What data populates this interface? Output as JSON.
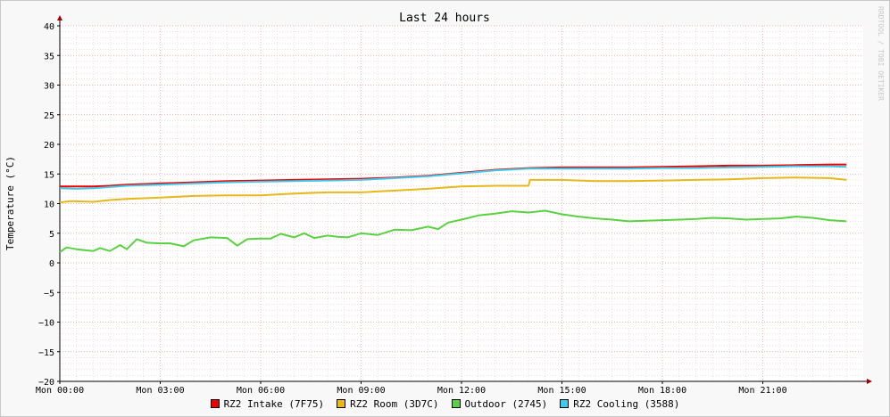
{
  "chart_data": {
    "type": "line",
    "title": "Last 24 hours",
    "ylabel": "Temperature (°C)",
    "xlabel": "",
    "watermark": "RRDTOOL / TOBI OETIKER",
    "ylim": [
      -20,
      40
    ],
    "xlim": [
      0,
      24
    ],
    "y_ticks": [
      "−20",
      "−15",
      "−10",
      "−5",
      "0",
      "5",
      "10",
      "15",
      "20",
      "25",
      "30",
      "35",
      "40"
    ],
    "y_tick_values": [
      -20,
      -15,
      -10,
      -5,
      0,
      5,
      10,
      15,
      20,
      25,
      30,
      35,
      40
    ],
    "x_ticks": [
      "Mon 00:00",
      "Mon 03:00",
      "Mon 06:00",
      "Mon 09:00",
      "Mon 12:00",
      "Mon 15:00",
      "Mon 18:00",
      "Mon 21:00"
    ],
    "x_tick_values": [
      0,
      3,
      6,
      9,
      12,
      15,
      18,
      21
    ],
    "grid": true,
    "legend_position": "bottom",
    "series": [
      {
        "name": "RZ2 Intake (7F75)",
        "color": "#ee0000",
        "x": [
          0,
          0.5,
          1,
          1.5,
          2,
          3,
          4,
          5,
          6,
          7,
          8,
          9,
          10,
          11,
          12,
          13,
          14,
          15,
          16,
          17,
          18,
          19,
          20,
          21,
          22,
          23,
          23.5
        ],
        "values": [
          12.9,
          12.9,
          12.9,
          13.0,
          13.2,
          13.4,
          13.6,
          13.8,
          13.9,
          14.0,
          14.1,
          14.2,
          14.4,
          14.7,
          15.2,
          15.7,
          16.0,
          16.1,
          16.1,
          16.1,
          16.2,
          16.3,
          16.4,
          16.4,
          16.5,
          16.6,
          16.6
        ]
      },
      {
        "name": "RZ2 Room (3D7C)",
        "color": "#e6b81a",
        "x": [
          0,
          0.3,
          1,
          1.5,
          2,
          3,
          4,
          5,
          6,
          7,
          8,
          9,
          10,
          11,
          12,
          13,
          14.0,
          14.05,
          15,
          16,
          17,
          18,
          19,
          20,
          21,
          22,
          23,
          23.5
        ],
        "values": [
          10.2,
          10.4,
          10.3,
          10.6,
          10.8,
          11.0,
          11.3,
          11.4,
          11.4,
          11.7,
          11.9,
          11.9,
          12.2,
          12.5,
          12.9,
          13.0,
          13.0,
          14.0,
          14.0,
          13.8,
          13.8,
          13.9,
          14.0,
          14.1,
          14.3,
          14.4,
          14.3,
          14.0
        ]
      },
      {
        "name": "Outdoor (2745)",
        "color": "#5ad142",
        "x": [
          0,
          0.2,
          0.5,
          1,
          1.2,
          1.5,
          1.8,
          2.0,
          2.3,
          2.6,
          3.0,
          3.3,
          3.7,
          4.0,
          4.5,
          5.0,
          5.3,
          5.6,
          6.0,
          6.3,
          6.6,
          7.0,
          7.3,
          7.6,
          8.0,
          8.3,
          8.6,
          9.0,
          9.5,
          10.0,
          10.5,
          11.0,
          11.3,
          11.6,
          12.0,
          12.5,
          13.0,
          13.5,
          14.0,
          14.5,
          15.0,
          15.5,
          16.0,
          16.5,
          17.0,
          17.5,
          18.0,
          18.5,
          19.0,
          19.5,
          20.0,
          20.5,
          21.0,
          21.5,
          22.0,
          22.5,
          23.0,
          23.5
        ],
        "values": [
          1.8,
          2.6,
          2.3,
          2.0,
          2.5,
          2.0,
          3.0,
          2.3,
          4.0,
          3.4,
          3.3,
          3.3,
          2.8,
          3.8,
          4.3,
          4.2,
          2.9,
          4.0,
          4.1,
          4.1,
          4.9,
          4.3,
          5.0,
          4.2,
          4.6,
          4.4,
          4.3,
          5.0,
          4.7,
          5.6,
          5.5,
          6.1,
          5.7,
          6.8,
          7.3,
          8.0,
          8.3,
          8.7,
          8.5,
          8.8,
          8.2,
          7.8,
          7.5,
          7.3,
          7.0,
          7.1,
          7.2,
          7.3,
          7.4,
          7.6,
          7.5,
          7.3,
          7.4,
          7.5,
          7.8,
          7.6,
          7.2,
          7.0
        ]
      },
      {
        "name": "RZ2 Cooling (3588)",
        "color": "#42c8e8",
        "x": [
          0,
          0.5,
          1,
          1.5,
          2,
          3,
          4,
          5,
          6,
          7,
          8,
          9,
          10,
          11,
          12,
          13,
          14,
          15,
          16,
          17,
          18,
          19,
          20,
          21,
          22,
          23,
          23.5
        ],
        "values": [
          12.6,
          12.5,
          12.6,
          12.8,
          13.0,
          13.2,
          13.4,
          13.6,
          13.7,
          13.8,
          13.9,
          14.0,
          14.3,
          14.6,
          15.1,
          15.6,
          15.9,
          15.9,
          15.9,
          15.9,
          16.0,
          16.0,
          16.1,
          16.2,
          16.3,
          16.3,
          16.2
        ]
      }
    ]
  }
}
